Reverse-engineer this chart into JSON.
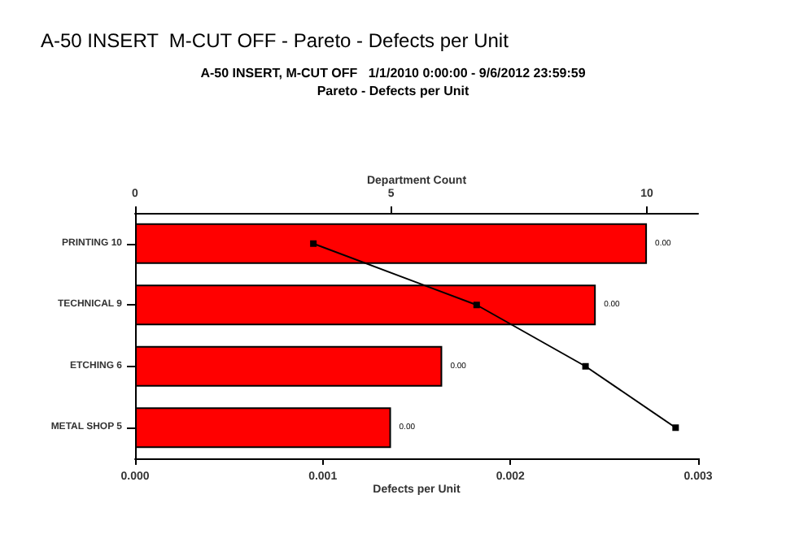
{
  "chart_data": {
    "type": "bar",
    "orientation": "horizontal",
    "title": "A-50 INSERT, M-CUT OFF   1/1/2010 0:00:00 - 9/6/2012 23:59:59",
    "subtitle": "Pareto - Defects per Unit",
    "annotations": [
      "A-50 INSERT  M-CUT OFF - Pareto - Defects per Unit",
      "0.00",
      "0.00",
      "0.00",
      "0.00"
    ],
    "categories": [
      "PRINTING 10",
      "TECHNICAL 9",
      "ETCHING 6",
      "METAL SHOP 5"
    ],
    "series": [
      {
        "axis": "x2",
        "color": "#ff0000",
        "values": [
          10,
          9,
          6,
          5
        ]
      },
      {
        "type": "line",
        "color": "#000000",
        "marker": "square",
        "values": [
          0.00095,
          0.00182,
          0.0024,
          0.00288
        ]
      }
    ],
    "xlabel": "Defects per Unit",
    "xlim": [
      0,
      0.003
    ],
    "xticks": [
      {
        "value": 0,
        "label": "0.000"
      },
      {
        "value": 0.001,
        "label": "0.001"
      },
      {
        "value": 0.002,
        "label": "0.002"
      },
      {
        "value": 0.003,
        "label": "0.003"
      }
    ],
    "x2label": "Department Count",
    "x2lim": [
      0,
      11
    ],
    "x2ticks": [
      0,
      5,
      10
    ],
    "grid": false
  }
}
